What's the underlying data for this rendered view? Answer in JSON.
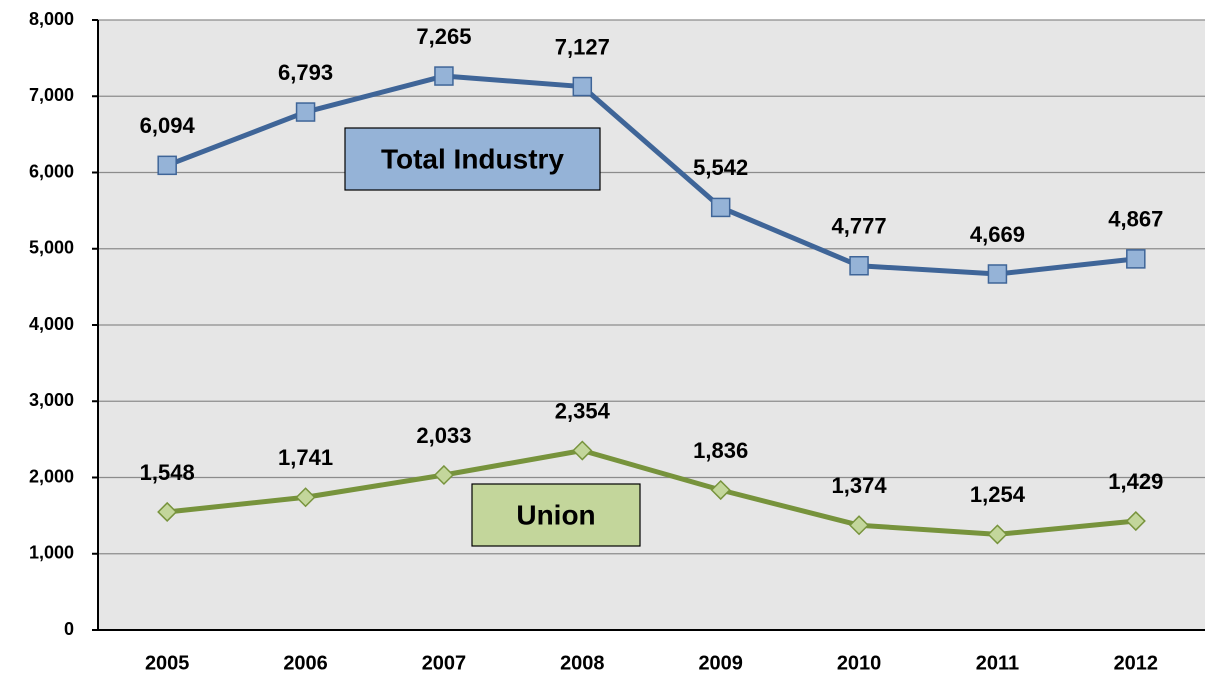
{
  "chart_data": {
    "type": "line",
    "categories": [
      "2005",
      "2006",
      "2007",
      "2008",
      "2009",
      "2010",
      "2011",
      "2012"
    ],
    "series": [
      {
        "name": "Total Industry",
        "color": "#3f6598",
        "marker": "square",
        "marker_color": "#95b3d7",
        "values": [
          6094,
          6793,
          7265,
          7127,
          5542,
          4777,
          4669,
          4867
        ],
        "value_labels": [
          "6,094",
          "6,793",
          "7,265",
          "7,127",
          "5,542",
          "4,777",
          "4,669",
          "4,867"
        ]
      },
      {
        "name": "Union",
        "color": "#77933c",
        "marker": "diamond",
        "marker_color": "#c3d69b",
        "values": [
          1548,
          1741,
          2033,
          2354,
          1836,
          1374,
          1254,
          1429
        ],
        "value_labels": [
          "1,548",
          "1,741",
          "2,033",
          "2,354",
          "1,836",
          "1,374",
          "1,254",
          "1,429"
        ]
      }
    ],
    "ylim": [
      0,
      8000
    ],
    "yticks": [
      0,
      {
        "value": 1000,
        "label": "1,000"
      },
      {
        "value": 2000,
        "label": "2,000"
      },
      {
        "value": 3000,
        "label": "3,000"
      },
      {
        "value": 4000,
        "label": "4,000"
      },
      {
        "value": 5000,
        "label": "5,000"
      },
      {
        "value": 6000,
        "label": "6,000"
      },
      {
        "value": 7000,
        "label": "7,000"
      },
      {
        "value": 8000,
        "label": "8,000"
      }
    ],
    "grid": true,
    "background": "#e6e6e6"
  }
}
